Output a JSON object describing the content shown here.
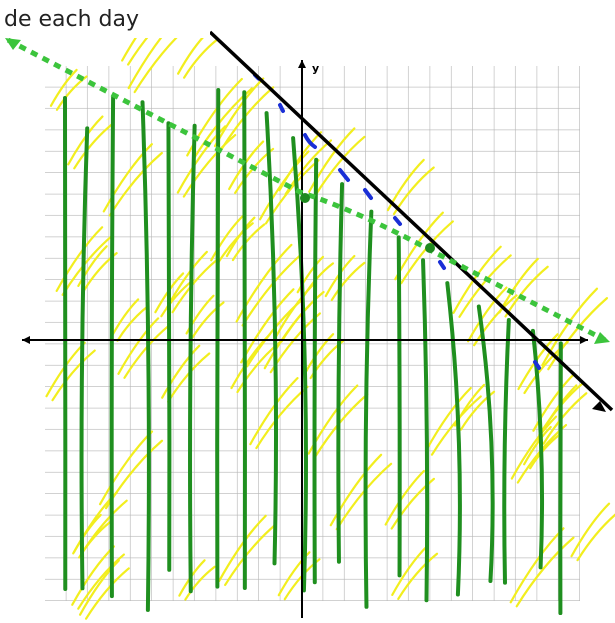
{
  "header": {
    "text": "de each day"
  },
  "graph": {
    "y_axis_label": "y"
  }
}
